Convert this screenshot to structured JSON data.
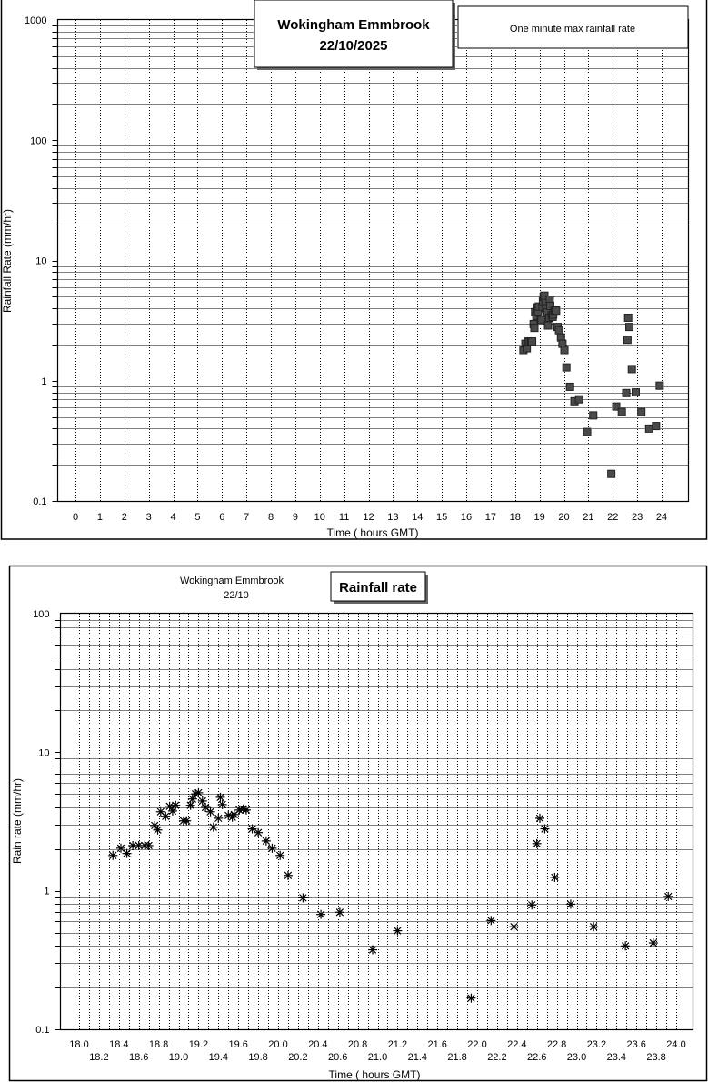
{
  "chart_data": [
    {
      "type": "scatter",
      "title": "Wokingham Emmbrook",
      "subtitle": "22/10/2025",
      "legend": "One minute max rainfall rate",
      "legend_placement": "top-right",
      "xlabel": "Time ( hours GMT)",
      "ylabel": "Rainfall Rate (mm/hr)",
      "xlim": [
        0,
        24
      ],
      "ylim": [
        0.1,
        1000
      ],
      "yscale": "log",
      "grid": true,
      "xticks": [
        "0",
        "1",
        "2",
        "3",
        "4",
        "5",
        "6",
        "7",
        "8",
        "9",
        "10",
        "11",
        "12",
        "13",
        "14",
        "15",
        "16",
        "17",
        "18",
        "19",
        "20",
        "21",
        "22",
        "23",
        "24"
      ],
      "yticks": [
        "0.1",
        "1",
        "10",
        "100",
        "1000"
      ],
      "marker": "square",
      "series_ref": "shared"
    },
    {
      "type": "scatter",
      "title": "Rainfall rate",
      "subtitle_line1": "Wokingham Emmbrook",
      "subtitle_line2": "22/10",
      "xlabel": "Time ( hours GMT)",
      "ylabel": "Rain rate (mm/hr)",
      "xlim": [
        18.0,
        24.0
      ],
      "ylim": [
        0.1,
        100
      ],
      "yscale": "log",
      "grid": true,
      "xticks_upper": [
        "18.0",
        "18.4",
        "18.8",
        "19.2",
        "19.6",
        "20.0",
        "20.4",
        "20.8",
        "21.2",
        "21.6",
        "22.0",
        "22.4",
        "22.8",
        "23.2",
        "23.6",
        "24.0"
      ],
      "xticks_lower": [
        "18.2",
        "18.6",
        "19.0",
        "19.4",
        "19.8",
        "20.2",
        "20.6",
        "21.0",
        "21.4",
        "21.8",
        "22.2",
        "22.6",
        "23.0",
        "23.4",
        "23.8"
      ],
      "yticks": [
        "0.1",
        "1",
        "10",
        "100"
      ],
      "marker": "asterisk",
      "series_ref": "shared"
    }
  ],
  "series": {
    "name": "One minute max rainfall rate",
    "x": [
      18.34,
      18.42,
      18.48,
      18.54,
      18.6,
      18.66,
      18.7,
      18.76,
      18.79,
      18.82,
      18.87,
      18.91,
      18.94,
      18.97,
      19.05,
      19.08,
      19.12,
      19.14,
      19.17,
      19.2,
      19.24,
      19.27,
      19.32,
      19.35,
      19.4,
      19.42,
      19.44,
      19.5,
      19.54,
      19.56,
      19.61,
      19.65,
      19.68,
      19.74,
      19.8,
      19.88,
      19.94,
      20.02,
      20.1,
      20.25,
      20.43,
      20.62,
      20.95,
      21.2,
      21.94,
      22.14,
      22.37,
      22.55,
      22.6,
      22.63,
      22.68,
      22.78,
      22.94,
      23.17,
      23.49,
      23.77,
      23.92
    ],
    "y": [
      1.8,
      2.03,
      1.86,
      2.12,
      2.12,
      2.12,
      2.12,
      2.96,
      2.75,
      3.72,
      3.45,
      4.07,
      3.77,
      4.14,
      3.2,
      3.2,
      4.14,
      4.6,
      5.0,
      5.1,
      4.45,
      4.0,
      3.72,
      2.88,
      3.34,
      4.73,
      4.19,
      3.5,
      3.4,
      3.55,
      3.83,
      3.89,
      3.83,
      2.8,
      2.63,
      2.29,
      2.03,
      1.8,
      1.29,
      0.89,
      0.675,
      0.7,
      0.375,
      0.515,
      0.168,
      0.61,
      0.55,
      0.79,
      2.19,
      3.34,
      2.8,
      1.25,
      0.8,
      0.55,
      0.4,
      0.42,
      0.91
    ]
  }
}
